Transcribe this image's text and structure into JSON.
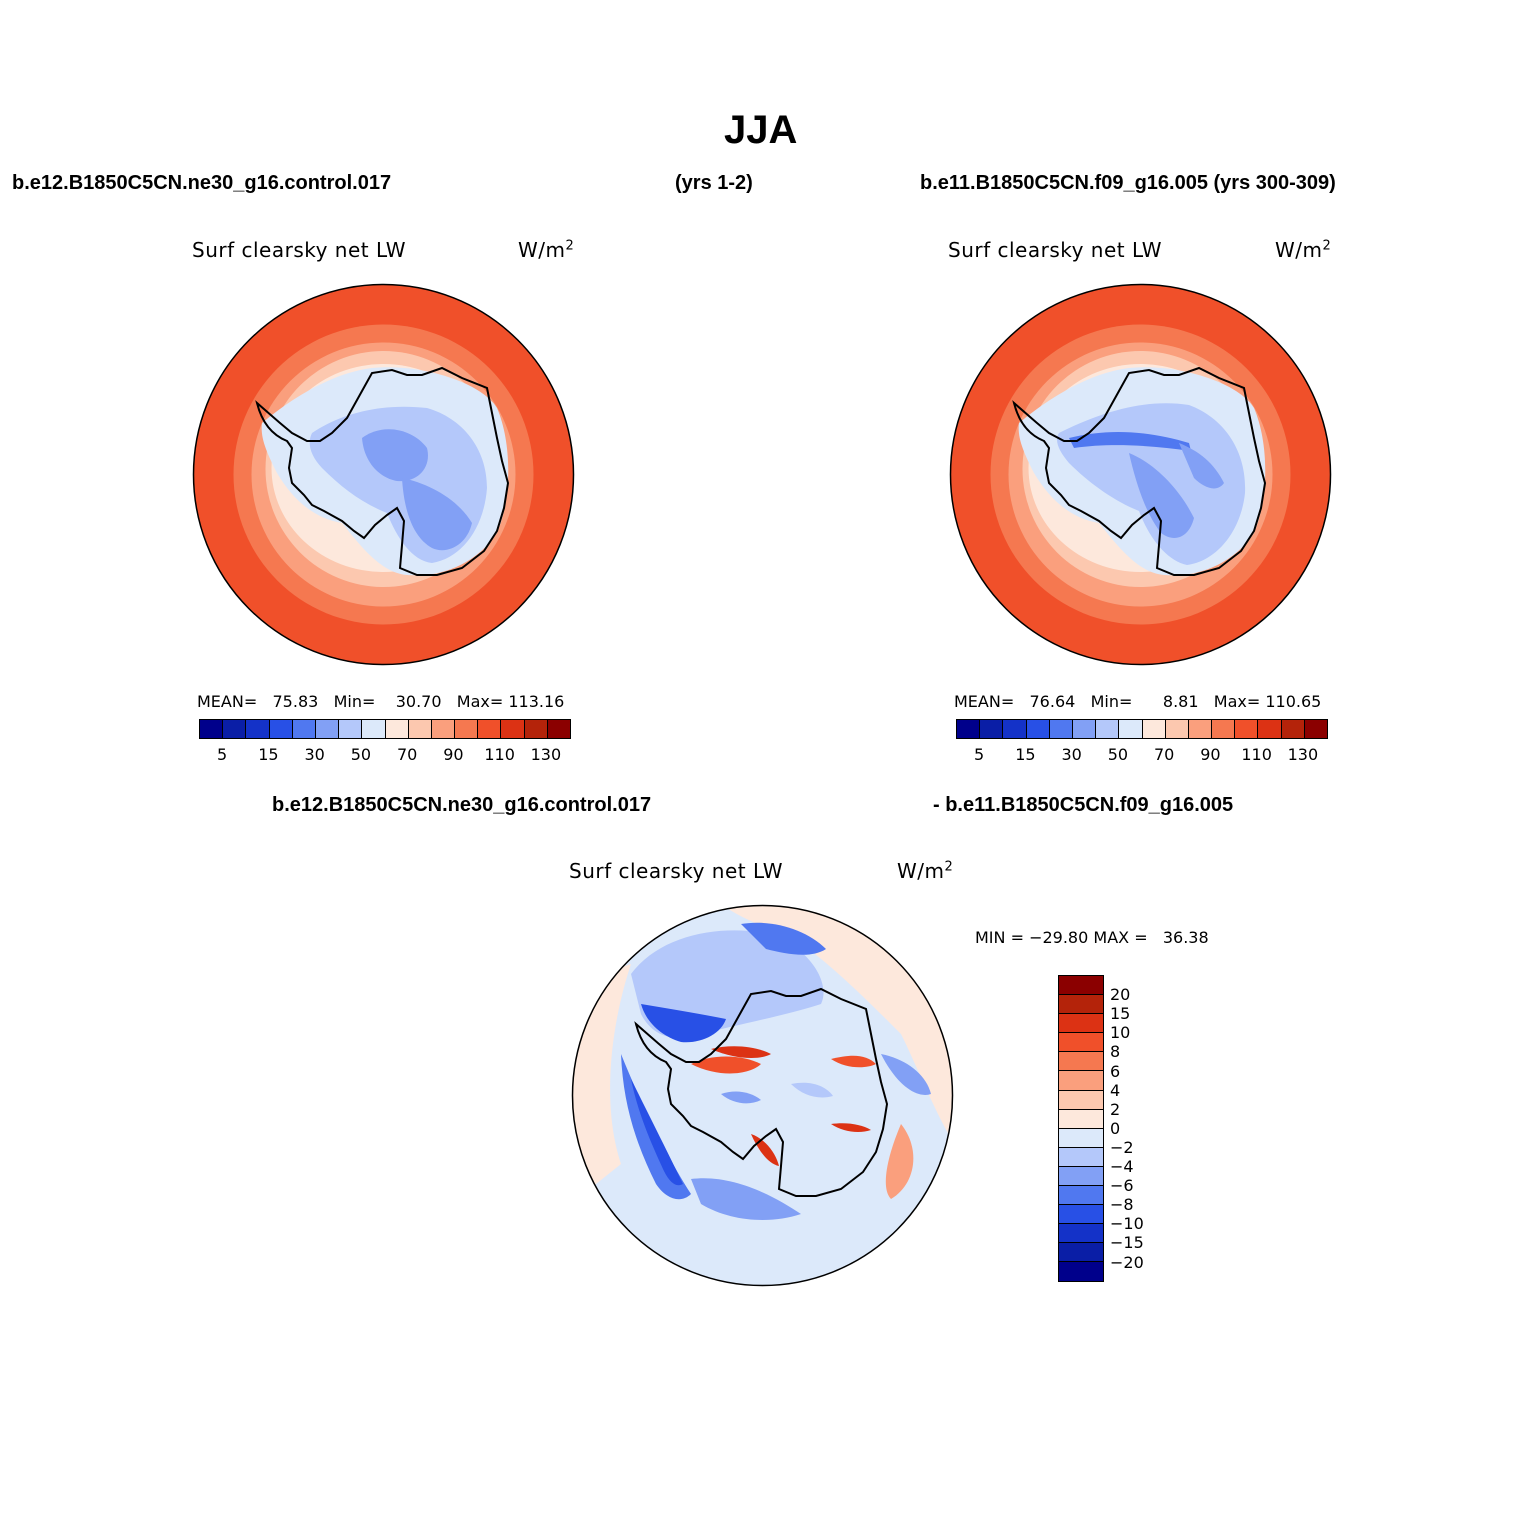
{
  "title": "JJA",
  "panel1": {
    "case": "b.e12.B1850C5CN.ne30_g16.control.017",
    "years": "(yrs 1-2)",
    "variable": "Surf clearsky net LW",
    "units": "W/m",
    "units_sup": "2",
    "stats": {
      "mean_label": "MEAN=",
      "mean": "75.83",
      "min_label": "Min=",
      "min": "30.70",
      "max_label": "Max=",
      "max": "113.16"
    }
  },
  "panel2": {
    "case": "b.e11.B1850C5CN.f09_g16.005 (yrs 300-309)",
    "variable": "Surf clearsky net LW",
    "units": "W/m",
    "units_sup": "2",
    "stats": {
      "mean_label": "MEAN=",
      "mean": "76.64",
      "min_label": "Min=",
      "min": "8.81",
      "max_label": "Max=",
      "max": "110.65"
    }
  },
  "panel3": {
    "case_left": "b.e12.B1850C5CN.ne30_g16.control.017",
    "case_right": "- b.e11.B1850C5CN.f09_g16.005",
    "variable": "Surf clearsky net LW",
    "units": "W/m",
    "units_sup": "2",
    "minmax": {
      "min_label": "MIN =",
      "min": "−29.80",
      "max_label": "MAX =",
      "max": "36.38"
    }
  },
  "colorbar_abs": {
    "colors": [
      "#00008b",
      "#0a1ea6",
      "#1432c8",
      "#2850e6",
      "#5078f0",
      "#82a0f5",
      "#b4c8fa",
      "#dce9fa",
      "#fde8dc",
      "#fcc8af",
      "#fa9f7d",
      "#f57850",
      "#f0502a",
      "#dc3214",
      "#b4230a",
      "#8b0000"
    ],
    "tick_labels": [
      "5",
      "15",
      "30",
      "50",
      "70",
      "90",
      "110",
      "130"
    ]
  },
  "colorbar_diff": {
    "colors": [
      "#8b0000",
      "#b4230a",
      "#dc3214",
      "#f0502a",
      "#f57850",
      "#fa9f7d",
      "#fcc8af",
      "#fde8dc",
      "#dce9fa",
      "#b4c8fa",
      "#82a0f5",
      "#5078f0",
      "#2850e6",
      "#1432c8",
      "#0a1ea6",
      "#00008b"
    ],
    "tick_labels": [
      "20",
      "15",
      "10",
      "8",
      "6",
      "4",
      "2",
      "0",
      "−2",
      "−4",
      "−6",
      "−8",
      "−10",
      "−15",
      "−20"
    ]
  }
}
